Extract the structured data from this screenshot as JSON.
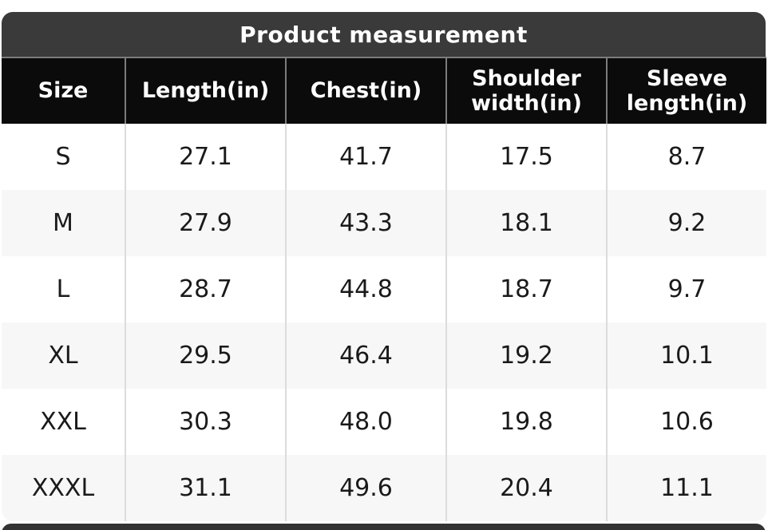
{
  "chart_data": {
    "type": "table",
    "title": "Product measurement",
    "columns": [
      "Size",
      "Length(in)",
      "Chest(in)",
      "Shoulder width(in)",
      "Sleeve length(in)"
    ],
    "rows": [
      [
        "S",
        "27.1",
        "41.7",
        "17.5",
        "8.7"
      ],
      [
        "M",
        "27.9",
        "43.3",
        "18.1",
        "9.2"
      ],
      [
        "L",
        "28.7",
        "44.8",
        "18.7",
        "9.7"
      ],
      [
        "XL",
        "29.5",
        "46.4",
        "19.2",
        "10.1"
      ],
      [
        "XXL",
        "30.3",
        "48.0",
        "19.8",
        "10.6"
      ],
      [
        "XXXL",
        "31.1",
        "49.6",
        "20.4",
        "11.1"
      ]
    ],
    "units": "inches",
    "layout": {
      "header_position": "top",
      "row_striping": "white / light-gray alternating",
      "grid": "vertical dividers only"
    }
  },
  "colors": {
    "title_bar_bg": "#3a3a3a",
    "header_bg": "#0b0b0b",
    "header_divider": "#7c7c7c",
    "row_bg": "#ffffff",
    "row_alt_bg": "#f7f7f7",
    "body_divider": "#dcdcdc",
    "header_text": "#ffffff",
    "body_text": "#1a1a1a"
  }
}
